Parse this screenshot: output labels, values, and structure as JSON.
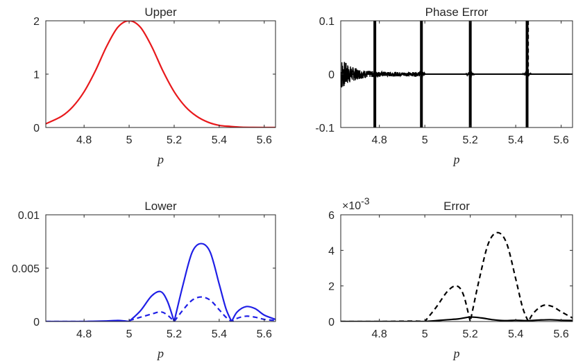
{
  "chart_data": [
    {
      "type": "line",
      "title": "Upper",
      "xlabel": "p",
      "ylabel": "",
      "xlim": [
        4.63,
        5.65
      ],
      "ylim": [
        0,
        2
      ],
      "xticks": [
        4.8,
        5,
        5.2,
        5.4,
        5.6
      ],
      "xtick_labels": [
        "4.8",
        "5",
        "5.2",
        "5.4",
        "5.6"
      ],
      "yticks": [
        0,
        1,
        2
      ],
      "ytick_labels": [
        "0",
        "1",
        "2"
      ],
      "grid": false,
      "series": [
        {
          "color": "#e8191c",
          "style": "solid",
          "x": [
            4.63,
            4.7,
            4.75,
            4.8,
            4.85,
            4.9,
            4.95,
            5.0,
            5.05,
            5.1,
            5.15,
            5.2,
            5.25,
            5.3,
            5.35,
            5.4,
            5.45,
            5.5,
            5.55,
            5.6,
            5.65
          ],
          "y": [
            0.07,
            0.21,
            0.39,
            0.67,
            1.06,
            1.52,
            1.88,
            2.0,
            1.88,
            1.52,
            1.06,
            0.67,
            0.39,
            0.21,
            0.1,
            0.04,
            0.02,
            0.005,
            0.002,
            0.0,
            0.0
          ]
        }
      ]
    },
    {
      "type": "line",
      "title": "Phase Error",
      "xlabel": "p",
      "ylabel": "",
      "xlim": [
        4.63,
        5.65
      ],
      "ylim": [
        -0.1,
        0.1
      ],
      "xticks": [
        4.8,
        5,
        5.2,
        5.4,
        5.6
      ],
      "xtick_labels": [
        "4.8",
        "5",
        "5.2",
        "5.4",
        "5.6"
      ],
      "yticks": [
        -0.1,
        0,
        0.1
      ],
      "ytick_labels": [
        "-0.1",
        "0",
        "0.1"
      ],
      "grid": false,
      "noise_region": [
        4.63,
        5.0
      ],
      "spikes": [
        {
          "x": 4.78,
          "style": "solid"
        },
        {
          "x": 4.985,
          "style": "solid"
        },
        {
          "x": 5.2,
          "style": "solid"
        },
        {
          "x": 5.45,
          "style": "solid"
        },
        {
          "x": 5.2,
          "style": "dashed"
        },
        {
          "x": 5.455,
          "style": "dashed"
        }
      ],
      "series": [
        {
          "color": "#000000",
          "style": "solid",
          "x": [
            4.63,
            5.65
          ],
          "y": [
            0,
            0
          ]
        },
        {
          "color": "#000000",
          "style": "dashed",
          "x": [
            4.63,
            5.65
          ],
          "y": [
            0,
            0
          ]
        }
      ]
    },
    {
      "type": "line",
      "title": "Lower",
      "xlabel": "p",
      "ylabel": "",
      "xlim": [
        4.63,
        5.65
      ],
      "ylim": [
        0,
        0.01
      ],
      "xticks": [
        4.8,
        5,
        5.2,
        5.4,
        5.6
      ],
      "xtick_labels": [
        "4.8",
        "5",
        "5.2",
        "5.4",
        "5.6"
      ],
      "yticks": [
        0,
        0.005,
        0.01
      ],
      "ytick_labels": [
        "0",
        "0.005",
        "0.01"
      ],
      "grid": false,
      "series": [
        {
          "color": "#1f1fe6",
          "style": "solid",
          "x": [
            4.63,
            4.8,
            4.9,
            4.95,
            4.98,
            5.0,
            5.05,
            5.1,
            5.14,
            5.17,
            5.2,
            5.24,
            5.28,
            5.32,
            5.36,
            5.4,
            5.43,
            5.455,
            5.48,
            5.52,
            5.56,
            5.6,
            5.65
          ],
          "y": [
            0,
            0,
            5e-05,
            0.0001,
            5e-05,
            0,
            0.001,
            0.0024,
            0.0028,
            0.0019,
            0.0,
            0.0035,
            0.0065,
            0.0073,
            0.0065,
            0.0035,
            0.0012,
            0.0,
            0.0009,
            0.0014,
            0.0012,
            0.0006,
            0.0002
          ]
        },
        {
          "color": "#1f1fe6",
          "style": "dashed",
          "x": [
            4.63,
            4.95,
            5.0,
            5.05,
            5.1,
            5.14,
            5.17,
            5.2,
            5.24,
            5.28,
            5.32,
            5.36,
            5.4,
            5.43,
            5.455,
            5.48,
            5.52,
            5.56,
            5.6,
            5.65
          ],
          "y": [
            0,
            0,
            0.0001,
            0.0004,
            0.0007,
            0.0009,
            0.0006,
            0.0,
            0.0011,
            0.002,
            0.0023,
            0.002,
            0.0011,
            0.0004,
            0.0,
            0.0003,
            0.0005,
            0.0004,
            0.0002,
            0.0001
          ]
        }
      ]
    },
    {
      "type": "line",
      "title": "Error",
      "xlabel": "p",
      "ylabel": "",
      "y_multiplier_base": "×10",
      "y_multiplier_exp": "-3",
      "xlim": [
        4.63,
        5.65
      ],
      "ylim": [
        0,
        6
      ],
      "xticks": [
        4.8,
        5,
        5.2,
        5.4,
        5.6
      ],
      "xtick_labels": [
        "4.8",
        "5",
        "5.2",
        "5.4",
        "5.6"
      ],
      "yticks": [
        0,
        2,
        4,
        6
      ],
      "ytick_labels": [
        "0",
        "2",
        "4",
        "6"
      ],
      "grid": false,
      "series": [
        {
          "color": "#000000",
          "style": "dashed",
          "x": [
            4.63,
            4.8,
            4.95,
            5.0,
            5.05,
            5.1,
            5.14,
            5.17,
            5.2,
            5.24,
            5.28,
            5.32,
            5.36,
            5.4,
            5.43,
            5.455,
            5.48,
            5.52,
            5.56,
            5.6,
            5.65
          ],
          "y": [
            0,
            0,
            0.02,
            0,
            0.8,
            1.7,
            2.0,
            1.5,
            0,
            2.4,
            4.4,
            5.0,
            4.4,
            2.4,
            0.8,
            0,
            0.5,
            0.9,
            0.85,
            0.55,
            0.2
          ]
        },
        {
          "color": "#000000",
          "style": "solid",
          "x": [
            4.63,
            5.0,
            5.05,
            5.1,
            5.15,
            5.2,
            5.25,
            5.3,
            5.35,
            5.4,
            5.45,
            5.5,
            5.55,
            5.6,
            5.65
          ],
          "y": [
            0,
            0,
            0.05,
            0.1,
            0.15,
            0.25,
            0.2,
            0.1,
            0.05,
            0.07,
            0.05,
            0.08,
            0.1,
            0.07,
            0.06
          ]
        }
      ]
    }
  ]
}
